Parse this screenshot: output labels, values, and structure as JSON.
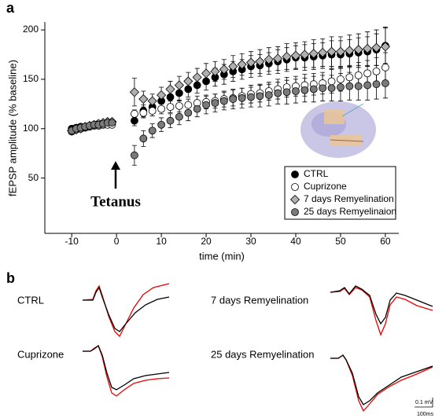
{
  "chart_data": {
    "type": "scatter",
    "panel_label": "a",
    "xlabel": "time (min)",
    "ylabel": "fEPSP amplitude (% baseline)",
    "annotation": "Tetanus",
    "xlim": [
      -16,
      63
    ],
    "ylim": [
      -6,
      208
    ],
    "xticks": [
      -10,
      0,
      10,
      20,
      30,
      40,
      50,
      60
    ],
    "yticks": [
      50,
      100,
      150,
      200
    ],
    "legend": "lower right",
    "x": [
      -10,
      -9,
      -8,
      -7,
      -6,
      -5,
      -4,
      -3,
      -2,
      -1,
      4,
      6,
      8,
      10,
      12,
      14,
      16,
      18,
      20,
      22,
      24,
      26,
      28,
      30,
      32,
      34,
      36,
      38,
      40,
      42,
      44,
      46,
      48,
      50,
      52,
      54,
      56,
      58,
      60
    ],
    "series": [
      {
        "name": "CTRL",
        "color": "#000000",
        "marker": "circle",
        "values": [
          100,
          101,
          102,
          101,
          103,
          104,
          105,
          104,
          106,
          105,
          108,
          118,
          122,
          128,
          132,
          136,
          140,
          144,
          148,
          152,
          155,
          158,
          160,
          163,
          164,
          166,
          168,
          170,
          172,
          172,
          173,
          174,
          175,
          175,
          176,
          177,
          178,
          180,
          184
        ],
        "errors": [
          2,
          2,
          2,
          2,
          2,
          2,
          2,
          2,
          2,
          2,
          5,
          6,
          6,
          7,
          7,
          8,
          8,
          8,
          9,
          9,
          10,
          10,
          10,
          11,
          11,
          11,
          12,
          12,
          12,
          13,
          13,
          13,
          14,
          14,
          14,
          15,
          15,
          16,
          18
        ]
      },
      {
        "name": "Cuprizone",
        "color": "#ffffff",
        "marker": "circle",
        "values": [
          97,
          99,
          100,
          101,
          102,
          103,
          103,
          104,
          104,
          104,
          115,
          116,
          118,
          120,
          122,
          123,
          124,
          126,
          127,
          128,
          130,
          131,
          133,
          135,
          136,
          138,
          140,
          142,
          143,
          144,
          145,
          146,
          148,
          150,
          152,
          154,
          156,
          158,
          162
        ],
        "errors": [
          2,
          2,
          2,
          2,
          2,
          2,
          2,
          2,
          2,
          2,
          4,
          5,
          5,
          5,
          6,
          6,
          6,
          7,
          7,
          7,
          8,
          8,
          8,
          9,
          9,
          9,
          10,
          10,
          10,
          11,
          11,
          11,
          12,
          12,
          12,
          13,
          13,
          14,
          15
        ]
      },
      {
        "name": "7 days Remyelination",
        "color": "#b0b0b0",
        "marker": "diamond",
        "values": [
          98,
          99,
          100,
          102,
          103,
          104,
          105,
          106,
          107,
          107,
          137,
          130,
          128,
          134,
          140,
          144,
          148,
          152,
          156,
          158,
          160,
          163,
          165,
          167,
          168,
          170,
          171,
          173,
          174,
          175,
          176,
          177,
          178,
          178,
          179,
          180,
          181,
          182,
          183
        ],
        "errors": [
          2,
          2,
          2,
          2,
          2,
          2,
          2,
          2,
          2,
          2,
          14,
          8,
          7,
          8,
          8,
          9,
          9,
          9,
          10,
          10,
          10,
          11,
          11,
          11,
          12,
          12,
          12,
          13,
          13,
          13,
          14,
          14,
          15,
          15,
          16,
          16,
          17,
          18,
          20
        ]
      },
      {
        "name": "25 days Remyelinaion",
        "color": "#7a7a7a",
        "marker": "circle",
        "values": [
          98,
          100,
          101,
          102,
          103,
          104,
          104,
          105,
          106,
          106,
          73,
          90,
          98,
          104,
          108,
          112,
          116,
          120,
          124,
          126,
          128,
          130,
          131,
          132,
          133,
          134,
          136,
          137,
          138,
          139,
          140,
          141,
          141,
          142,
          143,
          143,
          144,
          145,
          146
        ],
        "errors": [
          2,
          2,
          2,
          2,
          2,
          2,
          2,
          2,
          2,
          2,
          10,
          8,
          7,
          7,
          7,
          8,
          8,
          8,
          9,
          9,
          9,
          10,
          10,
          10,
          11,
          11,
          11,
          12,
          12,
          12,
          13,
          13,
          13,
          14,
          14,
          14,
          15,
          15,
          15
        ]
      }
    ]
  },
  "panel_b": {
    "panel_label": "b",
    "labels": [
      "CTRL",
      "7 days Remyelination",
      "Cuprizone",
      "25 days Remyelination"
    ],
    "scale_bar": [
      "0.1 mV",
      "100ms"
    ]
  }
}
